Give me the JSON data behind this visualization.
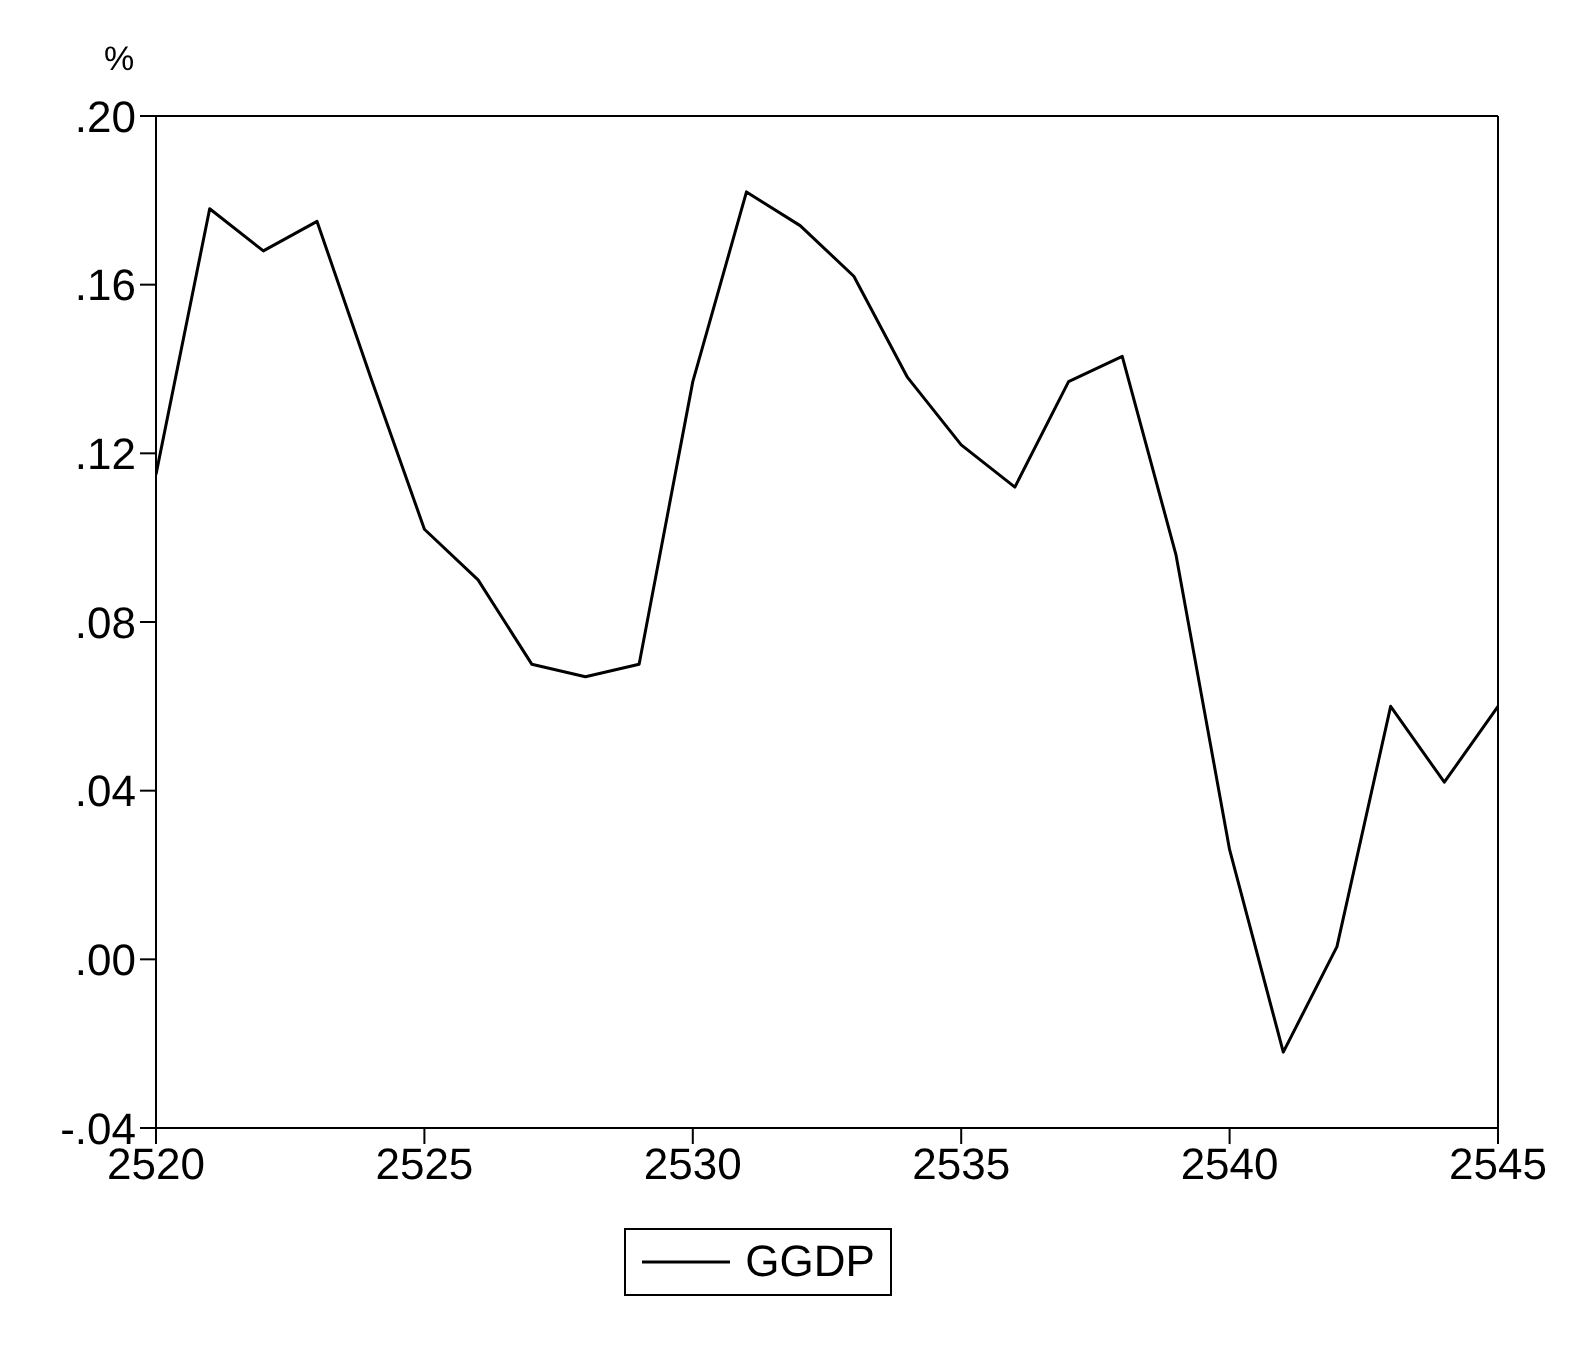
{
  "chart_data": {
    "type": "line",
    "ylabel": "%",
    "x": [
      2520,
      2521,
      2522,
      2523,
      2524,
      2525,
      2526,
      2527,
      2528,
      2529,
      2530,
      2531,
      2532,
      2533,
      2534,
      2535,
      2536,
      2537,
      2538,
      2539,
      2540,
      2541,
      2542,
      2543,
      2544,
      2545
    ],
    "series": [
      {
        "name": "GGDP",
        "color": "#000000",
        "values": [
          0.115,
          0.178,
          0.168,
          0.175,
          0.138,
          0.102,
          0.09,
          0.07,
          0.067,
          0.07,
          0.137,
          0.182,
          0.174,
          0.162,
          0.138,
          0.122,
          0.112,
          0.137,
          0.143,
          0.096,
          0.026,
          -0.022,
          0.003,
          0.06,
          0.042,
          0.06
        ]
      }
    ],
    "xlim": [
      2520,
      2545
    ],
    "xticks": [
      2520,
      2525,
      2530,
      2535,
      2540,
      2545
    ],
    "ylim": [
      -0.04,
      0.2
    ],
    "yticks": [
      {
        "value": -0.04,
        "label": "-.04"
      },
      {
        "value": 0,
        "label": ".00"
      },
      {
        "value": 0.04,
        "label": ".04"
      },
      {
        "value": 0.08,
        "label": ".08"
      },
      {
        "value": 0.12,
        "label": ".12"
      },
      {
        "value": 0.16,
        "label": ".16"
      },
      {
        "value": 0.2,
        "label": ".20"
      }
    ],
    "grid": false,
    "legend": "bottom",
    "marker": "none",
    "line_style": "solid"
  }
}
